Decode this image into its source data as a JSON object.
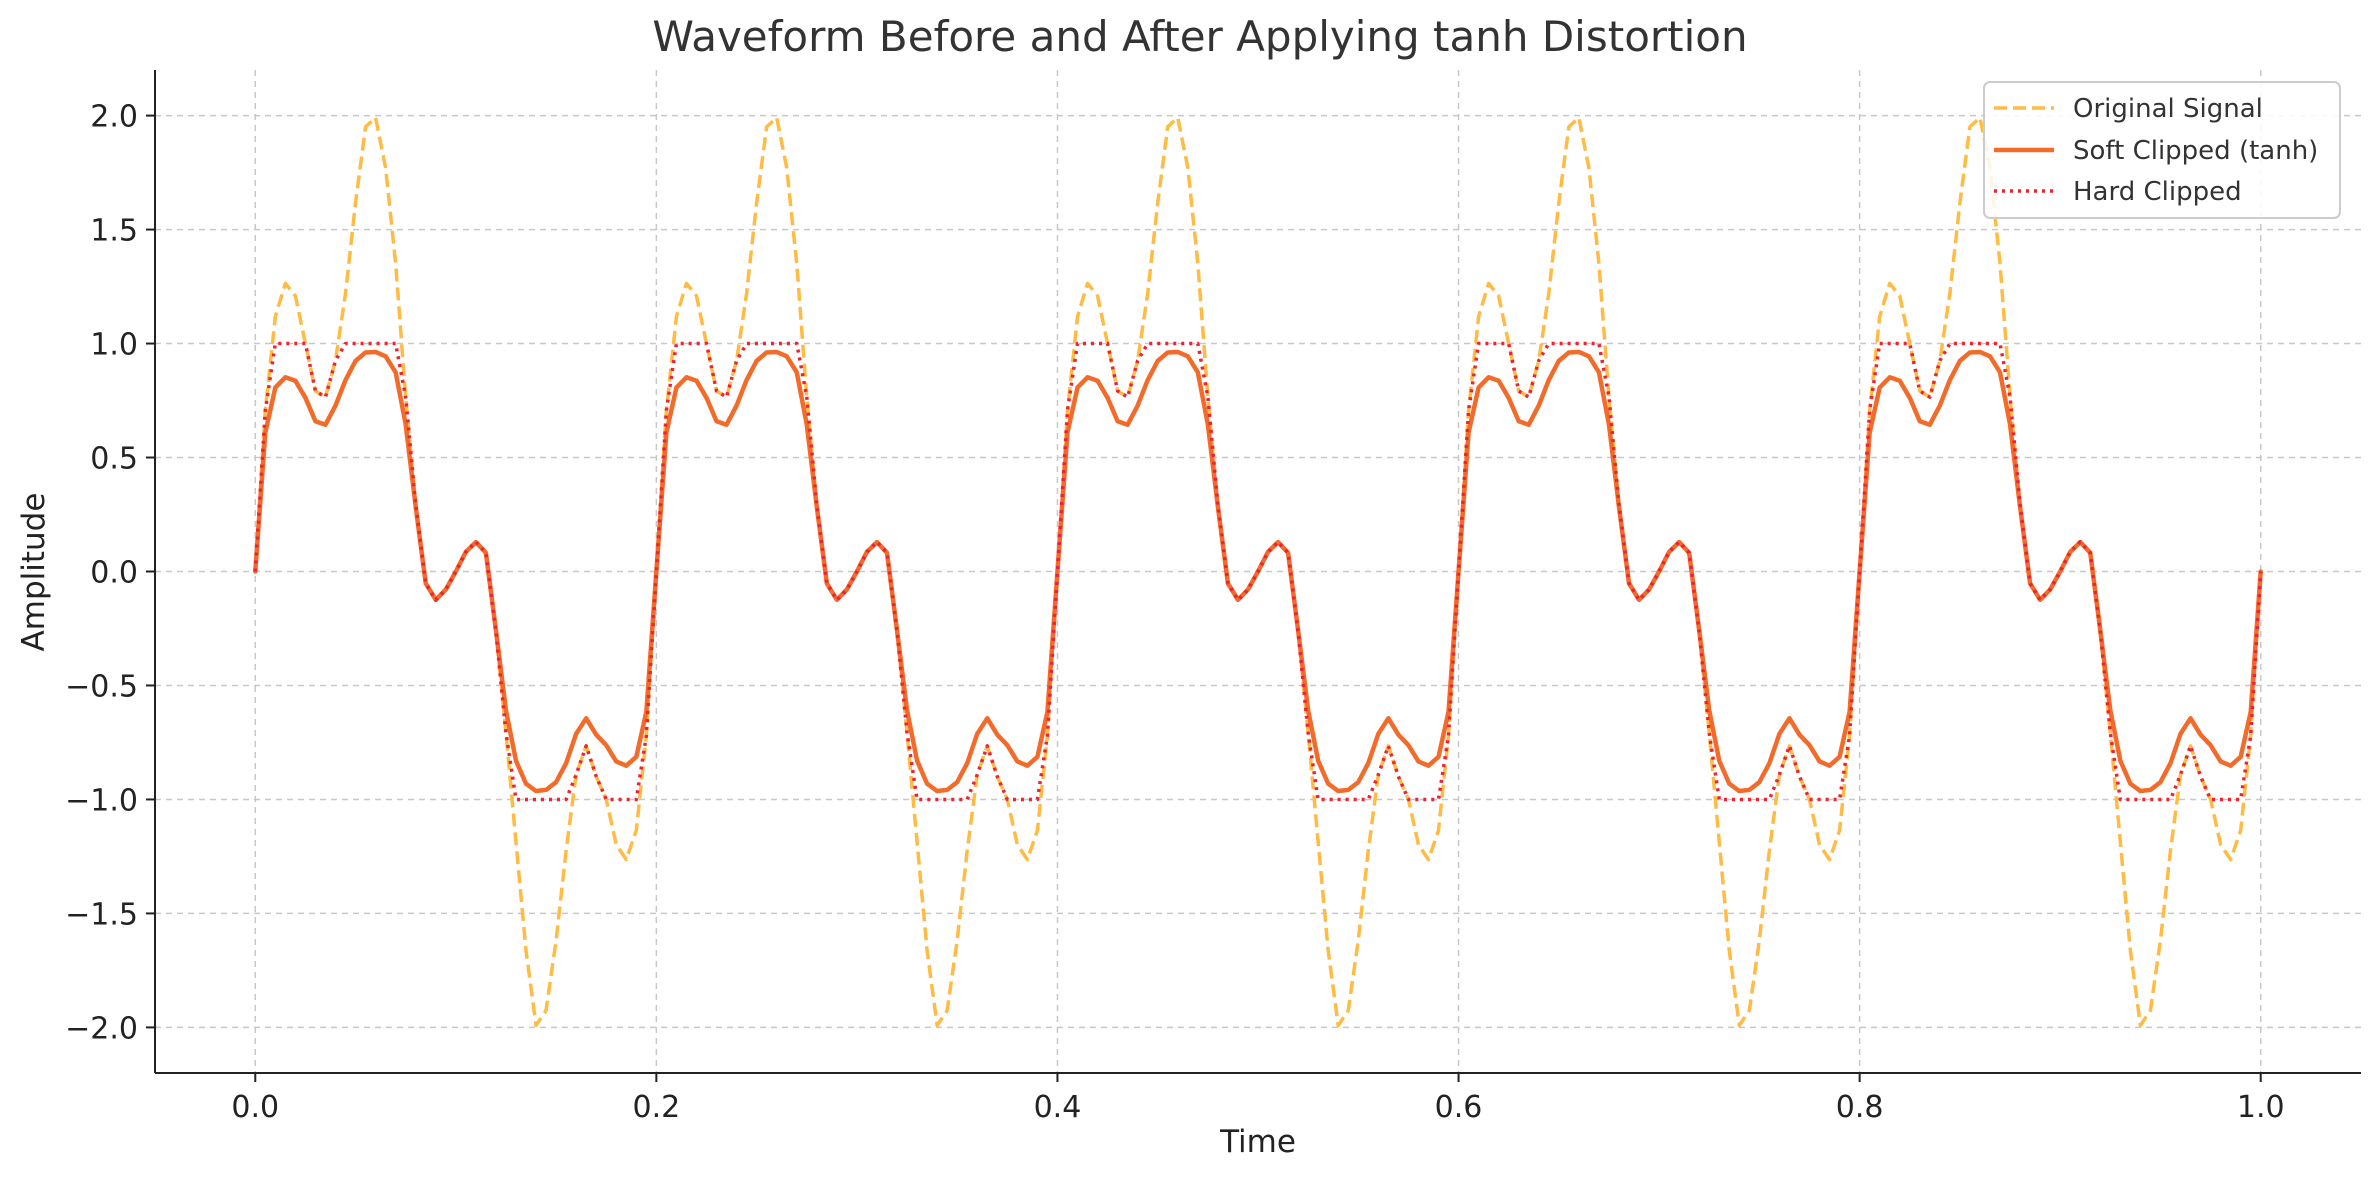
{
  "chart_data": {
    "type": "line",
    "title": "Waveform Before and After Applying tanh Distortion",
    "xlabel": "Time",
    "ylabel": "Amplitude",
    "xlim": [
      -0.05,
      1.05
    ],
    "ylim": [
      -2.2,
      2.2
    ],
    "x_ticks": [
      0.0,
      0.2,
      0.4,
      0.6,
      0.8,
      1.0
    ],
    "x_tick_labels": [
      "0.0",
      "0.2",
      "0.4",
      "0.6",
      "0.8",
      "1.0"
    ],
    "y_ticks": [
      2.0,
      1.5,
      1.0,
      0.5,
      0.0,
      -0.5,
      -1.0,
      -1.5,
      -2.0
    ],
    "y_tick_labels": [
      "2.0",
      "1.5",
      "1.0",
      "0.5",
      "0.0",
      "−0.5",
      "−1.0",
      "−1.5",
      "−2.0"
    ],
    "grid": true,
    "legend_position": "top-right",
    "x": [
      0.0,
      0.005,
      0.01,
      0.015,
      0.02,
      0.025,
      0.03,
      0.035,
      0.04,
      0.045,
      0.05,
      0.055,
      0.06,
      0.065,
      0.07,
      0.075,
      0.08,
      0.085,
      0.09,
      0.095,
      0.1,
      0.105,
      0.11,
      0.115,
      0.12,
      0.125,
      0.13,
      0.135,
      0.14,
      0.145,
      0.15,
      0.155,
      0.16,
      0.165,
      0.17,
      0.175,
      0.18,
      0.185,
      0.19,
      0.195,
      0.2,
      0.205,
      0.21,
      0.215,
      0.22,
      0.225,
      0.23,
      0.235,
      0.24,
      0.245,
      0.25,
      0.255,
      0.26,
      0.265,
      0.27,
      0.275,
      0.28,
      0.285,
      0.29,
      0.295,
      0.3,
      0.305,
      0.31,
      0.315,
      0.32,
      0.325,
      0.33,
      0.335,
      0.34,
      0.345,
      0.35,
      0.355,
      0.36,
      0.365,
      0.37,
      0.375,
      0.38,
      0.385,
      0.39,
      0.395,
      0.4,
      0.405,
      0.41,
      0.415,
      0.42,
      0.425,
      0.43,
      0.435,
      0.44,
      0.445,
      0.45,
      0.455,
      0.46,
      0.465,
      0.47,
      0.475,
      0.48,
      0.485,
      0.49,
      0.495,
      0.5,
      0.505,
      0.51,
      0.515,
      0.52,
      0.525,
      0.53,
      0.535,
      0.54,
      0.545,
      0.55,
      0.555,
      0.56,
      0.565,
      0.57,
      0.575,
      0.58,
      0.585,
      0.59,
      0.595,
      0.6,
      0.605,
      0.61,
      0.615,
      0.62,
      0.625,
      0.63,
      0.635,
      0.64,
      0.645,
      0.65,
      0.655,
      0.66,
      0.665,
      0.67,
      0.675,
      0.68,
      0.685,
      0.69,
      0.695,
      0.7,
      0.705,
      0.71,
      0.715,
      0.72,
      0.725,
      0.73,
      0.735,
      0.74,
      0.745,
      0.75,
      0.755,
      0.76,
      0.765,
      0.77,
      0.775,
      0.78,
      0.785,
      0.79,
      0.795,
      0.8,
      0.805,
      0.81,
      0.815,
      0.82,
      0.825,
      0.83,
      0.835,
      0.84,
      0.845,
      0.85,
      0.855,
      0.86,
      0.865,
      0.87,
      0.875,
      0.88,
      0.885,
      0.89,
      0.895,
      0.9,
      0.905,
      0.91,
      0.915,
      0.92,
      0.925,
      0.93,
      0.935,
      0.94,
      0.945,
      0.95,
      0.955,
      0.96,
      0.965,
      0.97,
      0.975,
      0.98,
      0.985,
      0.99,
      0.995,
      1.0
    ],
    "series": [
      {
        "name": "Original Signal",
        "color": "#ffbb44",
        "style": "dashed",
        "values": [
          0.0,
          0.707,
          1.118,
          1.264,
          1.209,
          1.0,
          0.792,
          0.765,
          0.925,
          1.22,
          1.618,
          1.951,
          1.991,
          1.771,
          1.351,
          0.766,
          0.292,
          -0.052,
          -0.125,
          -0.079,
          0.0,
          0.086,
          0.13,
          0.082,
          -0.264,
          -0.708,
          -1.187,
          -1.663,
          -1.991,
          -1.926,
          -1.618,
          -1.224,
          -0.891,
          -0.765,
          -0.899,
          -1.0,
          -1.198,
          -1.264,
          -1.136,
          -0.72,
          0.0,
          0.707,
          1.118,
          1.264,
          1.209,
          1.0,
          0.792,
          0.765,
          0.925,
          1.22,
          1.618,
          1.951,
          1.991,
          1.771,
          1.351,
          0.766,
          0.292,
          -0.052,
          -0.125,
          -0.079,
          0.0,
          0.086,
          0.13,
          0.082,
          -0.264,
          -0.708,
          -1.187,
          -1.663,
          -1.991,
          -1.926,
          -1.618,
          -1.224,
          -0.891,
          -0.765,
          -0.899,
          -1.0,
          -1.198,
          -1.264,
          -1.136,
          -0.72,
          0.0,
          0.707,
          1.118,
          1.264,
          1.209,
          1.0,
          0.792,
          0.765,
          0.925,
          1.22,
          1.618,
          1.951,
          1.991,
          1.771,
          1.351,
          0.766,
          0.292,
          -0.052,
          -0.125,
          -0.079,
          0.0,
          0.086,
          0.13,
          0.082,
          -0.264,
          -0.708,
          -1.187,
          -1.663,
          -1.991,
          -1.926,
          -1.618,
          -1.224,
          -0.891,
          -0.765,
          -0.899,
          -1.0,
          -1.198,
          -1.264,
          -1.136,
          -0.72,
          0.0,
          0.707,
          1.118,
          1.264,
          1.209,
          1.0,
          0.792,
          0.765,
          0.925,
          1.22,
          1.618,
          1.951,
          1.991,
          1.771,
          1.351,
          0.766,
          0.292,
          -0.052,
          -0.125,
          -0.079,
          0.0,
          0.086,
          0.13,
          0.082,
          -0.264,
          -0.708,
          -1.187,
          -1.663,
          -1.991,
          -1.926,
          -1.618,
          -1.224,
          -0.891,
          -0.765,
          -0.899,
          -1.0,
          -1.198,
          -1.264,
          -1.136,
          -0.72,
          0.0,
          0.707,
          1.118,
          1.264,
          1.209,
          1.0,
          0.792,
          0.765,
          0.925,
          1.22,
          1.618,
          1.951,
          1.991,
          1.771,
          1.351,
          0.766,
          0.292,
          -0.052,
          -0.125,
          -0.079,
          0.0,
          0.086,
          0.13,
          0.082,
          -0.264,
          -0.708,
          -1.187,
          -1.663,
          -1.991,
          -1.926,
          -1.618,
          -1.224,
          -0.891,
          -0.765,
          -0.899,
          -1.0,
          -1.198,
          -1.264,
          -1.136,
          -0.72,
          0.0
        ]
      },
      {
        "name": "Soft Clipped (tanh)",
        "color": "#f26b2a",
        "style": "solid",
        "values": [
          0.0,
          0.609,
          0.807,
          0.852,
          0.837,
          0.762,
          0.659,
          0.644,
          0.728,
          0.84,
          0.924,
          0.961,
          0.963,
          0.944,
          0.874,
          0.645,
          0.284,
          -0.052,
          -0.124,
          -0.079,
          0.0,
          0.086,
          0.129,
          0.082,
          -0.258,
          -0.609,
          -0.83,
          -0.931,
          -0.963,
          -0.958,
          -0.924,
          -0.841,
          -0.712,
          -0.644,
          -0.716,
          -0.762,
          -0.833,
          -0.852,
          -0.813,
          -0.616,
          0.0,
          0.609,
          0.807,
          0.852,
          0.837,
          0.762,
          0.659,
          0.644,
          0.728,
          0.84,
          0.924,
          0.961,
          0.963,
          0.944,
          0.874,
          0.645,
          0.284,
          -0.052,
          -0.124,
          -0.079,
          0.0,
          0.086,
          0.129,
          0.082,
          -0.258,
          -0.609,
          -0.83,
          -0.931,
          -0.963,
          -0.958,
          -0.924,
          -0.841,
          -0.712,
          -0.644,
          -0.716,
          -0.762,
          -0.833,
          -0.852,
          -0.813,
          -0.616,
          0.0,
          0.609,
          0.807,
          0.852,
          0.837,
          0.762,
          0.659,
          0.644,
          0.728,
          0.84,
          0.924,
          0.961,
          0.963,
          0.944,
          0.874,
          0.645,
          0.284,
          -0.052,
          -0.124,
          -0.079,
          0.0,
          0.086,
          0.129,
          0.082,
          -0.258,
          -0.609,
          -0.83,
          -0.931,
          -0.963,
          -0.958,
          -0.924,
          -0.841,
          -0.712,
          -0.644,
          -0.716,
          -0.762,
          -0.833,
          -0.852,
          -0.813,
          -0.616,
          0.0,
          0.609,
          0.807,
          0.852,
          0.837,
          0.762,
          0.659,
          0.644,
          0.728,
          0.84,
          0.924,
          0.961,
          0.963,
          0.944,
          0.874,
          0.645,
          0.284,
          -0.052,
          -0.124,
          -0.079,
          0.0,
          0.086,
          0.129,
          0.082,
          -0.258,
          -0.609,
          -0.83,
          -0.931,
          -0.963,
          -0.958,
          -0.924,
          -0.841,
          -0.712,
          -0.644,
          -0.716,
          -0.762,
          -0.833,
          -0.852,
          -0.813,
          -0.616,
          0.0,
          0.609,
          0.807,
          0.852,
          0.837,
          0.762,
          0.659,
          0.644,
          0.728,
          0.84,
          0.924,
          0.961,
          0.963,
          0.944,
          0.874,
          0.645,
          0.284,
          -0.052,
          -0.124,
          -0.079,
          0.0,
          0.086,
          0.129,
          0.082,
          -0.258,
          -0.609,
          -0.83,
          -0.931,
          -0.963,
          -0.958,
          -0.924,
          -0.841,
          -0.712,
          -0.644,
          -0.716,
          -0.762,
          -0.833,
          -0.852,
          -0.813,
          -0.616,
          0.0
        ]
      },
      {
        "name": "Hard Clipped",
        "color": "#ee2233",
        "style": "dotted",
        "values": [
          0.0,
          0.707,
          1.0,
          1.0,
          1.0,
          1.0,
          0.792,
          0.765,
          0.925,
          1.0,
          1.0,
          1.0,
          1.0,
          1.0,
          1.0,
          0.766,
          0.292,
          -0.052,
          -0.125,
          -0.079,
          0.0,
          0.086,
          0.13,
          0.082,
          -0.264,
          -0.708,
          -1.0,
          -1.0,
          -1.0,
          -1.0,
          -1.0,
          -1.0,
          -0.891,
          -0.765,
          -0.899,
          -1.0,
          -1.0,
          -1.0,
          -1.0,
          -0.72,
          0.0,
          0.707,
          1.0,
          1.0,
          1.0,
          1.0,
          0.792,
          0.765,
          0.925,
          1.0,
          1.0,
          1.0,
          1.0,
          1.0,
          1.0,
          0.766,
          0.292,
          -0.052,
          -0.125,
          -0.079,
          0.0,
          0.086,
          0.13,
          0.082,
          -0.264,
          -0.708,
          -1.0,
          -1.0,
          -1.0,
          -1.0,
          -1.0,
          -1.0,
          -0.891,
          -0.765,
          -0.899,
          -1.0,
          -1.0,
          -1.0,
          -1.0,
          -0.72,
          0.0,
          0.707,
          1.0,
          1.0,
          1.0,
          1.0,
          0.792,
          0.765,
          0.925,
          1.0,
          1.0,
          1.0,
          1.0,
          1.0,
          1.0,
          0.766,
          0.292,
          -0.052,
          -0.125,
          -0.079,
          0.0,
          0.086,
          0.13,
          0.082,
          -0.264,
          -0.708,
          -1.0,
          -1.0,
          -1.0,
          -1.0,
          -1.0,
          -1.0,
          -0.891,
          -0.765,
          -0.899,
          -1.0,
          -1.0,
          -1.0,
          -1.0,
          -0.72,
          0.0,
          0.707,
          1.0,
          1.0,
          1.0,
          1.0,
          0.792,
          0.765,
          0.925,
          1.0,
          1.0,
          1.0,
          1.0,
          1.0,
          1.0,
          0.766,
          0.292,
          -0.052,
          -0.125,
          -0.079,
          0.0,
          0.086,
          0.13,
          0.082,
          -0.264,
          -0.708,
          -1.0,
          -1.0,
          -1.0,
          -1.0,
          -1.0,
          -1.0,
          -0.891,
          -0.765,
          -0.899,
          -1.0,
          -1.0,
          -1.0,
          -1.0,
          -0.72,
          0.0,
          0.707,
          1.0,
          1.0,
          1.0,
          1.0,
          0.792,
          0.765,
          0.925,
          1.0,
          1.0,
          1.0,
          1.0,
          1.0,
          1.0,
          0.766,
          0.292,
          -0.052,
          -0.125,
          -0.079,
          0.0,
          0.086,
          0.13,
          0.082,
          -0.264,
          -0.708,
          -1.0,
          -1.0,
          -1.0,
          -1.0,
          -1.0,
          -1.0,
          -0.891,
          -0.765,
          -0.899,
          -1.0,
          -1.0,
          -1.0,
          -1.0,
          -0.72,
          0.0
        ]
      }
    ]
  },
  "colors": {
    "grid": "#c8c8c8",
    "axis": "#222222",
    "legend_border": "#cccccc"
  }
}
